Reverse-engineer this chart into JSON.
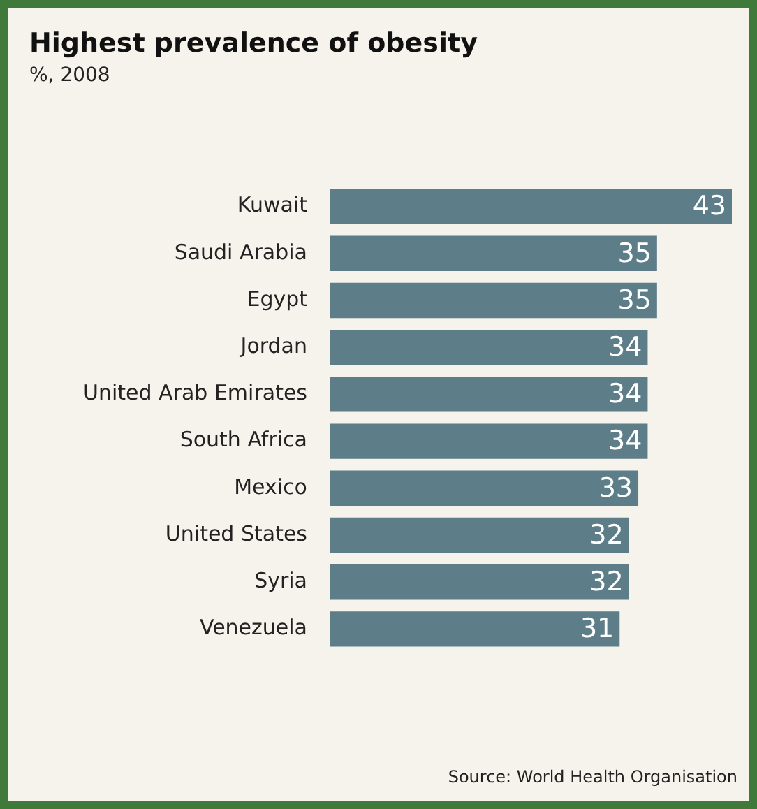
{
  "chart_data": {
    "type": "bar",
    "orientation": "horizontal",
    "title": "Highest prevalence of obesity",
    "subtitle": "%, 2008",
    "categories": [
      "Kuwait",
      "Saudi Arabia",
      "Egypt",
      "Jordan",
      "United Arab Emirates",
      "South Africa",
      "Mexico",
      "United States",
      "Syria",
      "Venezuela"
    ],
    "values": [
      43,
      35,
      35,
      34,
      34,
      34,
      33,
      32,
      32,
      31
    ],
    "color": "#5d7d89",
    "xlim": [
      0,
      43
    ],
    "data_labels": true,
    "legend": false,
    "tick_labels": "y",
    "annotations": [
      "Source: World Health Organisation"
    ]
  }
}
